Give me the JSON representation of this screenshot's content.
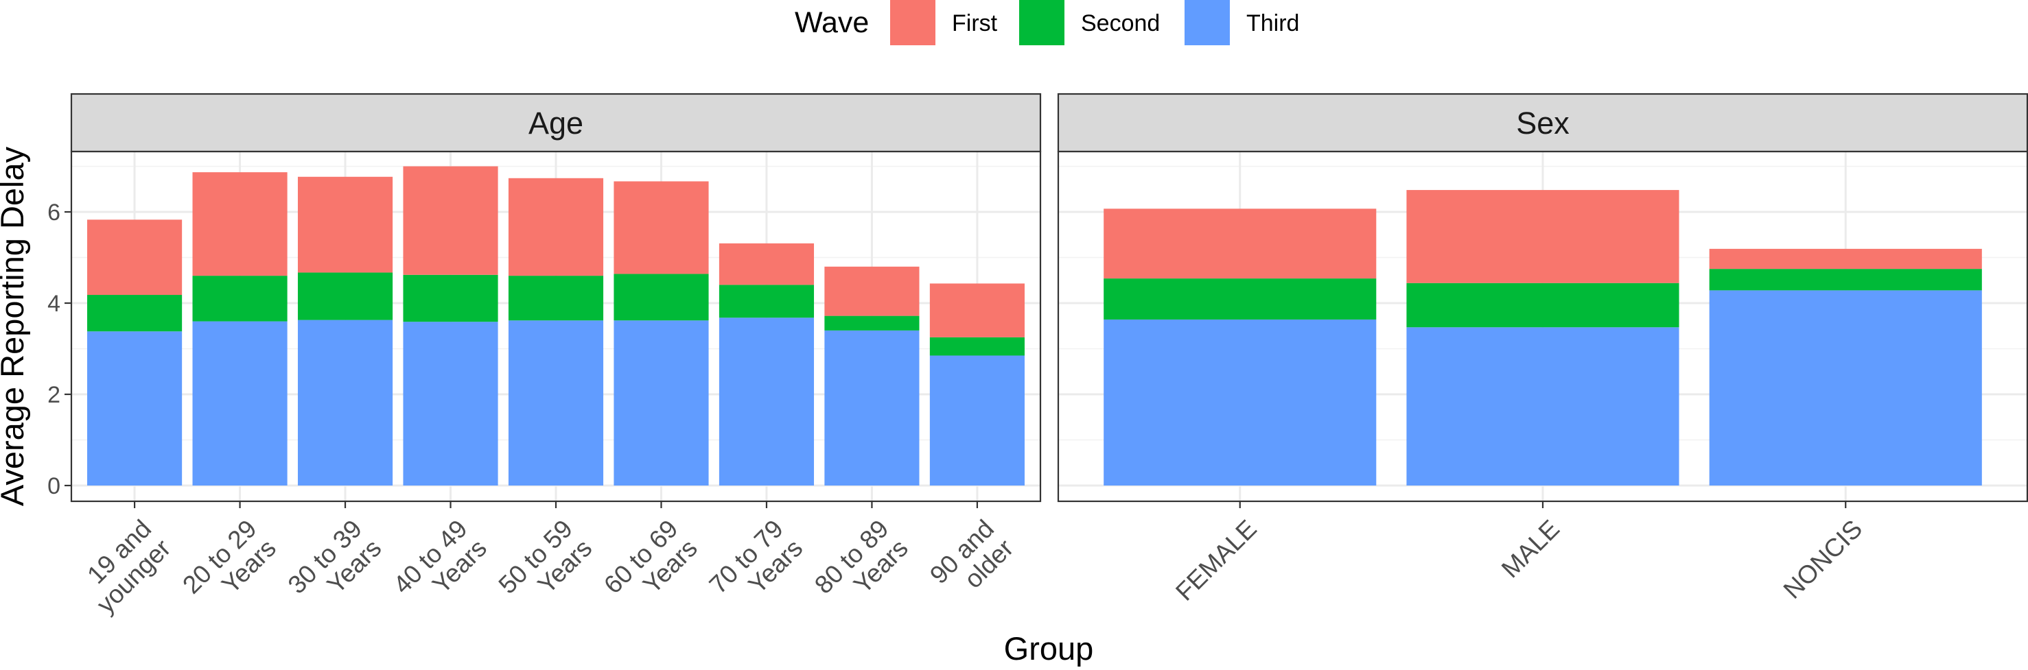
{
  "chart_data": {
    "type": "bar",
    "stacked": true,
    "xlabel": "Group",
    "ylabel": "Average Reporting Delay",
    "ylim": [
      0,
      7.4
    ],
    "y_ticks": [
      0,
      2,
      4,
      6
    ],
    "grid": true,
    "legend": {
      "title": "Wave",
      "placement": "top",
      "entries": [
        {
          "name": "First",
          "color": "#F8766D"
        },
        {
          "name": "Second",
          "color": "#00BA38"
        },
        {
          "name": "Third",
          "color": "#619CFF"
        }
      ]
    },
    "stack_order_bottom_to_top": [
      "Third",
      "Second",
      "First"
    ],
    "panels": [
      {
        "title": "Age",
        "categories": [
          [
            "19 and",
            "younger"
          ],
          [
            "20 to 29",
            "Years"
          ],
          [
            "30 to 39",
            "Years"
          ],
          [
            "40 to 49",
            "Years"
          ],
          [
            "50 to 59",
            "Years"
          ],
          [
            "60 to 69",
            "Years"
          ],
          [
            "70 to 79",
            "Years"
          ],
          [
            "80 to 89",
            "Years"
          ],
          [
            "90 and",
            "older"
          ]
        ],
        "series": [
          {
            "name": "Third",
            "values": [
              3.38,
              3.6,
              3.63,
              3.59,
              3.62,
              3.62,
              3.68,
              3.4,
              2.85
            ]
          },
          {
            "name": "Second",
            "values": [
              0.8,
              1.0,
              1.04,
              1.03,
              0.98,
              1.02,
              0.72,
              0.32,
              0.4
            ]
          },
          {
            "name": "First",
            "values": [
              1.65,
              2.27,
              2.1,
              2.38,
              2.14,
              2.03,
              0.91,
              1.08,
              1.18
            ]
          }
        ]
      },
      {
        "title": "Sex",
        "categories": [
          [
            "FEMALE"
          ],
          [
            "MALE"
          ],
          [
            "NONCIS"
          ]
        ],
        "series": [
          {
            "name": "Third",
            "values": [
              3.64,
              3.47,
              4.28
            ]
          },
          {
            "name": "Second",
            "values": [
              0.9,
              0.97,
              0.47
            ]
          },
          {
            "name": "First",
            "values": [
              1.53,
              2.04,
              0.44
            ]
          }
        ]
      }
    ]
  }
}
